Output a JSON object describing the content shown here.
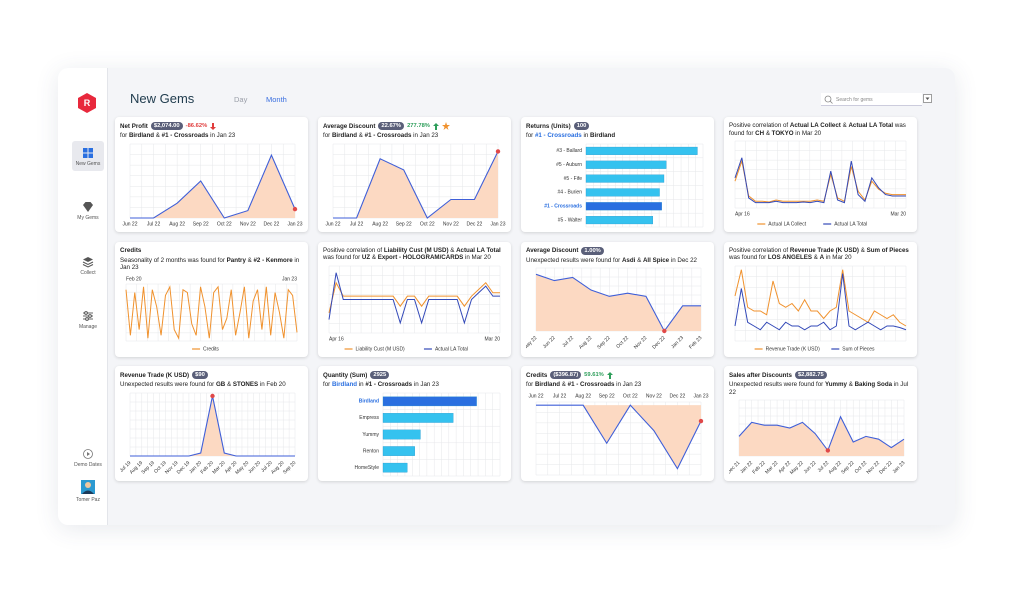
{
  "sidebar": {
    "logo": "R",
    "items": [
      "New Gems",
      "My Gems",
      "Collect",
      "Manage"
    ],
    "active": 0,
    "bottom": [
      "Demo Dates",
      "Tomer Paz"
    ]
  },
  "header": {
    "title": "New Gems",
    "tabs": [
      "Day",
      "Month"
    ],
    "active_tab": 1,
    "search_placeholder": "Search for gems"
  },
  "cards": [
    {
      "title": "Net Profit",
      "badge": "$2,074.00",
      "change": "-86.62%",
      "trend": "down",
      "subtitle": [
        {
          "text": "for "
        },
        {
          "text": "Birdland",
          "bold": true
        },
        {
          "text": " & "
        },
        {
          "text": "#1 - Crossroads",
          "bold": true
        },
        {
          "text": " in Jan 23"
        }
      ],
      "chart": {
        "type": "area",
        "categories": [
          "Jun 22",
          "Jul 22",
          "Aug 22",
          "Sep 22",
          "Oct 22",
          "Nov 22",
          "Dec 22",
          "Jan 23"
        ],
        "values": [
          0,
          0,
          20,
          50,
          0,
          10,
          85,
          12
        ],
        "ylim": [
          0,
          100
        ],
        "color": "#3f5fd8",
        "fill": "#fcd9c2",
        "highlight": 7,
        "highlight_color": "#e04848",
        "grid": true
      }
    },
    {
      "title": "Average Discount",
      "badge": "22.67%",
      "change": "277.78%",
      "trend": "up",
      "star": true,
      "subtitle": [
        {
          "text": "for "
        },
        {
          "text": "Birdland",
          "bold": true
        },
        {
          "text": " & "
        },
        {
          "text": "#1 - Crossroads",
          "bold": true
        },
        {
          "text": " in Jan 23"
        }
      ],
      "chart": {
        "type": "area",
        "categories": [
          "Jun 22",
          "Jul 22",
          "Aug 22",
          "Sep 22",
          "Oct 22",
          "Nov 22",
          "Dec 22",
          "Jan 23"
        ],
        "values": [
          0,
          0,
          80,
          65,
          0,
          25,
          25,
          90
        ],
        "ylim": [
          0,
          100
        ],
        "color": "#3f5fd8",
        "fill": "#fcd9c2",
        "highlight": 7,
        "highlight_color": "#e04848",
        "grid": true
      }
    },
    {
      "title": "Returns (Units)",
      "badge": "100",
      "subtitle": [
        {
          "text": "for "
        },
        {
          "text": "#1 - Crossroads",
          "bold": true,
          "color": "#2a6fe0"
        },
        {
          "text": " in "
        },
        {
          "text": "Birdland",
          "bold": true
        }
      ],
      "chart": {
        "type": "hbar",
        "categories": [
          "#3 - Ballard",
          "#5 - Auburn",
          "#5 - Fife",
          "#4 - Burien",
          "#1 - Crossroads",
          "#5 - Walter"
        ],
        "values": [
          100,
          72,
          70,
          66,
          68,
          60
        ],
        "xlim": [
          0,
          105
        ],
        "color": "#35c2ef",
        "highlight": 4,
        "highlight_color": "#2a6fe0",
        "grid": true
      }
    },
    {
      "subtitle": [
        {
          "text": "Positive correlation of "
        },
        {
          "text": "Actual LA Collect",
          "bold": true
        },
        {
          "text": " & "
        },
        {
          "text": "Actual LA Total",
          "bold": true
        },
        {
          "text": " was found for "
        },
        {
          "text": "CH",
          "bold": true
        },
        {
          "text": " & "
        },
        {
          "text": "TOKYO",
          "bold": true
        },
        {
          "text": " in Mar 20"
        }
      ],
      "chart": {
        "type": "line",
        "categories": [
          "Apr 16",
          null,
          null,
          null,
          null,
          null,
          null,
          null,
          null,
          null,
          null,
          null,
          null,
          null,
          null,
          null,
          null,
          null,
          null,
          null,
          null,
          null,
          null,
          null,
          null,
          "Mar 20"
        ],
        "ylim": [
          0,
          100
        ],
        "grid": true,
        "legend": true,
        "series": [
          {
            "name": "Actual LA Collect",
            "color": "#f0922e",
            "values": [
              40,
              70,
              18,
              10,
              10,
              9,
              12,
              10,
              10,
              10,
              10,
              10,
              12,
              10,
              50,
              15,
              10,
              62,
              25,
              12,
              40,
              28,
              22,
              20,
              20,
              20
            ]
          },
          {
            "name": "Actual LA Total",
            "color": "#3349b8",
            "values": [
              45,
              75,
              15,
              8,
              8,
              8,
              10,
              8,
              8,
              8,
              9,
              8,
              10,
              8,
              55,
              12,
              8,
              70,
              20,
              10,
              45,
              30,
              20,
              18,
              18,
              18
            ]
          }
        ]
      }
    },
    {
      "title": "Credits",
      "subtitle": [
        {
          "text": "Seasonality of 2 months was found for "
        },
        {
          "text": "Pantry",
          "bold": true
        },
        {
          "text": " & "
        },
        {
          "text": "#2 - Kenmore",
          "bold": true
        },
        {
          "text": " in Jan 23"
        }
      ],
      "chart": {
        "type": "line",
        "x_position": "top",
        "categories": [
          "Feb 20",
          null,
          null,
          null,
          null,
          null,
          null,
          null,
          null,
          null,
          null,
          null,
          null,
          null,
          null,
          null,
          null,
          null,
          null,
          null,
          null,
          null,
          null,
          null,
          null,
          null,
          null,
          null,
          null,
          null,
          null,
          null,
          null,
          null,
          null,
          null,
          null,
          null,
          null,
          "Jan 23"
        ],
        "ylim": [
          0,
          100
        ],
        "grid": true,
        "legend": true,
        "series": [
          {
            "name": "Credits",
            "color": "#f0922e",
            "values": [
              90,
              10,
              85,
              20,
              95,
              5,
              90,
              60,
              10,
              80,
              95,
              20,
              5,
              90,
              85,
              30,
              10,
              95,
              60,
              5,
              85,
              95,
              20,
              40,
              90,
              10,
              50,
              95,
              5,
              70,
              90,
              20,
              95,
              10,
              85,
              50,
              5,
              90,
              80,
              15
            ]
          }
        ]
      }
    },
    {
      "subtitle": [
        {
          "text": "Positive correlation of "
        },
        {
          "text": "Liability Cust (M USD)",
          "bold": true
        },
        {
          "text": " & "
        },
        {
          "text": "Actual LA Total",
          "bold": true
        },
        {
          "text": " was found for "
        },
        {
          "text": "UZ",
          "bold": true
        },
        {
          "text": " & "
        },
        {
          "text": "Export - HOLOGRAM/CARDS",
          "bold": true
        },
        {
          "text": " in Mar 20"
        }
      ],
      "chart": {
        "type": "line",
        "categories": [
          "Apr 16",
          null,
          null,
          null,
          null,
          null,
          null,
          null,
          null,
          null,
          null,
          null,
          null,
          null,
          null,
          null,
          null,
          null,
          null,
          null,
          null,
          null,
          null,
          null,
          "Mar 20"
        ],
        "ylim": [
          0,
          100
        ],
        "grid": true,
        "legend": true,
        "series": [
          {
            "name": "Liability Cust (M USD)",
            "color": "#f0922e",
            "values": [
              30,
              75,
              55,
              55,
              55,
              55,
              55,
              55,
              55,
              55,
              40,
              55,
              55,
              40,
              55,
              55,
              55,
              55,
              55,
              40,
              55,
              65,
              75,
              60,
              60
            ]
          },
          {
            "name": "Actual LA Total",
            "color": "#3349b8",
            "values": [
              20,
              90,
              50,
              50,
              50,
              50,
              50,
              50,
              50,
              50,
              15,
              50,
              50,
              15,
              50,
              50,
              50,
              50,
              50,
              15,
              50,
              60,
              70,
              55,
              55
            ]
          }
        ]
      }
    },
    {
      "title": "Average Discount",
      "badge": "1.00%",
      "subtitle": [
        {
          "text": "Unexpected results were found for "
        },
        {
          "text": "Asdi",
          "bold": true
        },
        {
          "text": " & "
        },
        {
          "text": "All Spice",
          "bold": true
        },
        {
          "text": " in Dec 22"
        }
      ],
      "chart": {
        "type": "area",
        "rotate": true,
        "categories": [
          "May 22",
          "Jun 22",
          "Jul 22",
          "Aug 22",
          "Sep 22",
          "Oct 22",
          "Nov 22",
          "Dec 22",
          "Jan 23",
          "Feb 23"
        ],
        "values": [
          90,
          80,
          85,
          65,
          55,
          60,
          55,
          0,
          40,
          40
        ],
        "ylim": [
          0,
          100
        ],
        "color": "#3f5fd8",
        "fill": "#fcd9c2",
        "highlight": 7,
        "highlight_color": "#e04848",
        "grid": true
      }
    },
    {
      "subtitle": [
        {
          "text": "Positive correlation of "
        },
        {
          "text": "Revenue Trade (K USD)",
          "bold": true
        },
        {
          "text": " & "
        },
        {
          "text": "Sum of Pieces",
          "bold": true
        },
        {
          "text": " was found for "
        },
        {
          "text": "LOS ANGELES",
          "bold": true
        },
        {
          "text": " & "
        },
        {
          "text": "A",
          "bold": true
        },
        {
          "text": " in Mar 20"
        }
      ],
      "chart": {
        "type": "line",
        "ylim": [
          0,
          100
        ],
        "grid": true,
        "legend": true,
        "categories": [
          null,
          null,
          null,
          null,
          null,
          null,
          null,
          null,
          null,
          null,
          null,
          null,
          null,
          null,
          null,
          null,
          null,
          null,
          null,
          null,
          null,
          null,
          null,
          null,
          null,
          null,
          null,
          null
        ],
        "series": [
          {
            "name": "Revenue Trade (K USD)",
            "color": "#f0922e",
            "values": [
              60,
              95,
              45,
              40,
              40,
              35,
              80,
              50,
              45,
              50,
              40,
              55,
              40,
              40,
              30,
              40,
              45,
              95,
              40,
              35,
              30,
              25,
              40,
              35,
              30,
              35,
              25,
              20
            ]
          },
          {
            "name": "Sum of Pieces",
            "color": "#3349b8",
            "values": [
              20,
              70,
              25,
              20,
              15,
              25,
              20,
              15,
              25,
              20,
              20,
              15,
              20,
              20,
              25,
              15,
              20,
              90,
              20,
              15,
              20,
              25,
              20,
              15,
              20,
              20,
              18,
              15
            ]
          }
        ]
      }
    },
    {
      "title": "Revenue Trade (K USD)",
      "badge": "$90",
      "subtitle": [
        {
          "text": "Unexpected results were found for "
        },
        {
          "text": "GB",
          "bold": true
        },
        {
          "text": " & "
        },
        {
          "text": "STONES",
          "bold": true
        },
        {
          "text": " in Feb 20"
        }
      ],
      "chart": {
        "type": "area",
        "rotate": true,
        "categories": [
          "Jul 19",
          "Aug 19",
          "Sep 19",
          "Oct 19",
          "Nov 19",
          "Dec 19",
          "Jan 20",
          "Feb 20",
          "Mar 20",
          "Apr 20",
          "May 20",
          "Jun 20",
          "Jul 20",
          "Aug 20",
          "Sep 20"
        ],
        "values": [
          0,
          0,
          0,
          0,
          0,
          0,
          5,
          100,
          5,
          0,
          0,
          0,
          0,
          0,
          0
        ],
        "ylim": [
          0,
          105
        ],
        "color": "#3f5fd8",
        "fill": "#fcd9c2",
        "highlight": 7,
        "highlight_color": "#e04848",
        "grid": true
      }
    },
    {
      "title": "Quantity (Sum)",
      "badge": "2925",
      "subtitle": [
        {
          "text": "for "
        },
        {
          "text": "Birdland",
          "bold": true,
          "color": "#2a6fe0"
        },
        {
          "text": " in "
        },
        {
          "text": "#1 - Crossroads",
          "bold": true
        },
        {
          "text": " in Jan 23"
        }
      ],
      "chart": {
        "type": "hbar",
        "categories": [
          "Birdland",
          "Empress",
          "Yummy",
          "Renton",
          "HomeStyle"
        ],
        "values": [
          100,
          75,
          40,
          34,
          26
        ],
        "xlim": [
          0,
          125
        ],
        "color": "#35c2ef",
        "highlight": 0,
        "highlight_color": "#2a6fe0",
        "grid": true
      }
    },
    {
      "title": "Credits",
      "badge": "($396.87)",
      "change": "59.61%",
      "trend": "up",
      "subtitle": [
        {
          "text": "for "
        },
        {
          "text": "Birdland",
          "bold": true
        },
        {
          "text": " & "
        },
        {
          "text": "#1 - Crossroads",
          "bold": true
        },
        {
          "text": " in Jan 23"
        }
      ],
      "chart": {
        "type": "area",
        "x_position": "top",
        "categories": [
          "Jun 22",
          "Jul 22",
          "Aug 22",
          "Sep 22",
          "Oct 22",
          "Nov 22",
          "Dec 22",
          "Jan 23"
        ],
        "values": [
          0,
          0,
          0,
          -60,
          0,
          -40,
          -100,
          -25
        ],
        "ylim": [
          -110,
          5
        ],
        "color": "#3f5fd8",
        "fill": "#fcd9c2",
        "highlight": 7,
        "highlight_color": "#e04848",
        "grid": true
      }
    },
    {
      "title": "Sales after Discounts",
      "badge": "$2,882.75",
      "subtitle": [
        {
          "text": "Unexpected results were found for "
        },
        {
          "text": "Yummy",
          "bold": true
        },
        {
          "text": " & "
        },
        {
          "text": "Baking Soda",
          "bold": true
        },
        {
          "text": " in Jul 22"
        }
      ],
      "chart": {
        "type": "area",
        "rotate": true,
        "categories": [
          "Dec 21",
          "Jan 22",
          "Feb 22",
          "Mar 22",
          "Apr 22",
          "May 22",
          "Jun 22",
          "Jul 22",
          "Aug 22",
          "Sep 22",
          "Oct 22",
          "Nov 22",
          "Dec 22",
          "Jan 23"
        ],
        "values": [
          35,
          60,
          55,
          55,
          50,
          60,
          40,
          10,
          70,
          25,
          35,
          30,
          15,
          30
        ],
        "ylim": [
          0,
          100
        ],
        "color": "#3f5fd8",
        "fill": "#fcd9c2",
        "highlight": 7,
        "highlight_color": "#e04848",
        "grid": true
      }
    }
  ]
}
